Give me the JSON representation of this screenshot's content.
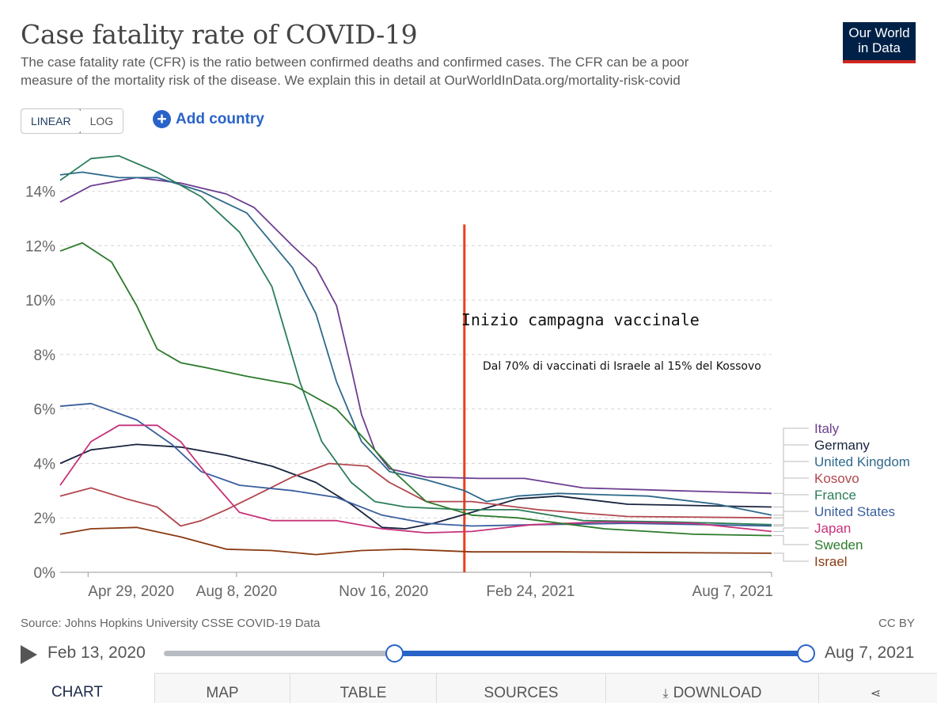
{
  "header": {
    "title": "Case fatality rate of COVID-19",
    "subtitle_line1": "The case fatality rate (CFR) is the ratio between confirmed deaths and confirmed cases. The CFR can be a poor",
    "subtitle_line2": "measure of the mortality risk of the disease. We explain this in detail at OurWorldInData.org/mortality-risk-covid",
    "logo_line1": "Our World",
    "logo_line2": "in Data"
  },
  "controls": {
    "scale_linear": "LINEAR",
    "scale_log": "LOG",
    "add_country": "Add country",
    "add_icon": "plus-circle-icon"
  },
  "footer": {
    "source": "Source: Johns Hopkins University CSSE COVID-19 Data",
    "license": "CC BY"
  },
  "timeline": {
    "start_label": "Feb 13, 2020",
    "end_label": "Aug 7, 2021",
    "play_icon": "play-icon",
    "range_start_date": "2020-08-25",
    "range_end_date": "2021-08-07"
  },
  "tabs": [
    {
      "label": "CHART",
      "active": true
    },
    {
      "label": "MAP"
    },
    {
      "label": "TABLE"
    },
    {
      "label": "SOURCES"
    },
    {
      "label": "DOWNLOAD",
      "icon": "download-icon"
    },
    {
      "label": "",
      "icon": "share-icon"
    }
  ],
  "chart_data": {
    "type": "line",
    "y_scale": "linear",
    "ylim": [
      0,
      15.5
    ],
    "xlim": [
      "2020-04-10",
      "2021-08-07"
    ],
    "yticks": [
      0,
      2,
      4,
      6,
      8,
      10,
      12,
      14
    ],
    "ytick_labels": [
      "0%",
      "2%",
      "4%",
      "6%",
      "8%",
      "10%",
      "12%",
      "14%"
    ],
    "xticks": [
      "2020-04-29",
      "2020-08-08",
      "2020-11-16",
      "2021-02-24",
      "2021-08-07"
    ],
    "xtick_labels": [
      "Apr 29, 2020",
      "Aug 8, 2020",
      "Nov 16, 2020",
      "Feb 24, 2021",
      "Aug 7, 2021"
    ],
    "grid": "horizontal dashed",
    "legend": "right, end-of-line labels",
    "annotations": [
      {
        "type": "vline",
        "x": "2021-01-10",
        "label": "Inizio campagna vaccinale",
        "color": "#e8401c"
      },
      {
        "type": "text",
        "x": "2021-01-25",
        "y": 7.7,
        "label": "Dal 70% di vaccinati di Israele al 15% del Kossovo"
      }
    ],
    "series": [
      {
        "name": "Italy",
        "color": "#6d3e91",
        "points": [
          [
            "2020-04-10",
            13.6
          ],
          [
            "2020-05-01",
            14.2
          ],
          [
            "2020-06-01",
            14.5
          ],
          [
            "2020-07-01",
            14.3
          ],
          [
            "2020-08-01",
            13.9
          ],
          [
            "2020-08-20",
            13.4
          ],
          [
            "2020-09-15",
            12.0
          ],
          [
            "2020-10-01",
            11.2
          ],
          [
            "2020-10-15",
            9.8
          ],
          [
            "2020-10-25",
            7.5
          ],
          [
            "2020-11-01",
            5.8
          ],
          [
            "2020-11-10",
            4.5
          ],
          [
            "2020-11-20",
            3.8
          ],
          [
            "2020-12-15",
            3.5
          ],
          [
            "2021-01-20",
            3.45
          ],
          [
            "2021-02-20",
            3.45
          ],
          [
            "2021-04-01",
            3.1
          ],
          [
            "2021-06-01",
            3.0
          ],
          [
            "2021-08-07",
            2.9
          ]
        ]
      },
      {
        "name": "Germany",
        "color": "#18243e",
        "points": [
          [
            "2020-04-10",
            4.0
          ],
          [
            "2020-05-01",
            4.5
          ],
          [
            "2020-06-01",
            4.7
          ],
          [
            "2020-07-01",
            4.6
          ],
          [
            "2020-08-01",
            4.3
          ],
          [
            "2020-09-01",
            3.9
          ],
          [
            "2020-10-01",
            3.3
          ],
          [
            "2020-10-25",
            2.5
          ],
          [
            "2020-11-15",
            1.65
          ],
          [
            "2020-12-01",
            1.6
          ],
          [
            "2020-12-20",
            1.8
          ],
          [
            "2021-01-15",
            2.2
          ],
          [
            "2021-02-15",
            2.7
          ],
          [
            "2021-03-15",
            2.8
          ],
          [
            "2021-05-01",
            2.5
          ],
          [
            "2021-08-07",
            2.4
          ]
        ]
      },
      {
        "name": "United Kingdom",
        "color": "#2e6a8b",
        "points": [
          [
            "2020-04-10",
            14.6
          ],
          [
            "2020-04-25",
            14.7
          ],
          [
            "2020-05-20",
            14.5
          ],
          [
            "2020-06-15",
            14.5
          ],
          [
            "2020-07-15",
            14.0
          ],
          [
            "2020-08-15",
            13.2
          ],
          [
            "2020-09-15",
            11.2
          ],
          [
            "2020-10-01",
            9.5
          ],
          [
            "2020-10-15",
            7.0
          ],
          [
            "2020-11-01",
            4.8
          ],
          [
            "2020-11-20",
            3.7
          ],
          [
            "2020-12-15",
            3.4
          ],
          [
            "2021-01-10",
            3.0
          ],
          [
            "2021-01-25",
            2.6
          ],
          [
            "2021-02-15",
            2.8
          ],
          [
            "2021-03-15",
            2.9
          ],
          [
            "2021-05-15",
            2.8
          ],
          [
            "2021-07-01",
            2.5
          ],
          [
            "2021-08-07",
            2.1
          ]
        ]
      },
      {
        "name": "Kosovo",
        "color": "#b1474e",
        "points": [
          [
            "2020-04-10",
            2.8
          ],
          [
            "2020-05-01",
            3.1
          ],
          [
            "2020-05-25",
            2.7
          ],
          [
            "2020-06-15",
            2.4
          ],
          [
            "2020-07-01",
            1.7
          ],
          [
            "2020-07-15",
            1.9
          ],
          [
            "2020-08-01",
            2.3
          ],
          [
            "2020-08-20",
            2.8
          ],
          [
            "2020-09-15",
            3.5
          ],
          [
            "2020-10-10",
            4.0
          ],
          [
            "2020-11-05",
            3.9
          ],
          [
            "2020-11-20",
            3.3
          ],
          [
            "2020-12-15",
            2.6
          ],
          [
            "2021-01-15",
            2.6
          ],
          [
            "2021-03-01",
            2.3
          ],
          [
            "2021-05-01",
            2.05
          ],
          [
            "2021-08-07",
            2.0
          ]
        ]
      },
      {
        "name": "France",
        "color": "#2a7d58",
        "points": [
          [
            "2020-04-10",
            14.4
          ],
          [
            "2020-05-01",
            15.2
          ],
          [
            "2020-05-20",
            15.3
          ],
          [
            "2020-06-15",
            14.7
          ],
          [
            "2020-07-15",
            13.8
          ],
          [
            "2020-08-10",
            12.5
          ],
          [
            "2020-09-01",
            10.5
          ],
          [
            "2020-09-20",
            7.0
          ],
          [
            "2020-10-05",
            4.8
          ],
          [
            "2020-10-25",
            3.3
          ],
          [
            "2020-11-10",
            2.6
          ],
          [
            "2020-12-01",
            2.4
          ],
          [
            "2021-01-10",
            2.3
          ],
          [
            "2021-02-15",
            2.3
          ],
          [
            "2021-04-01",
            1.9
          ],
          [
            "2021-06-01",
            1.85
          ],
          [
            "2021-08-07",
            1.75
          ]
        ]
      },
      {
        "name": "United States",
        "color": "#3a5f9e",
        "points": [
          [
            "2020-04-10",
            6.1
          ],
          [
            "2020-05-01",
            6.2
          ],
          [
            "2020-06-01",
            5.6
          ],
          [
            "2020-06-25",
            4.7
          ],
          [
            "2020-07-15",
            3.7
          ],
          [
            "2020-08-10",
            3.2
          ],
          [
            "2020-09-15",
            3.0
          ],
          [
            "2020-10-15",
            2.75
          ],
          [
            "2020-11-15",
            2.1
          ],
          [
            "2020-12-15",
            1.8
          ],
          [
            "2021-01-15",
            1.7
          ],
          [
            "2021-03-01",
            1.75
          ],
          [
            "2021-05-01",
            1.8
          ],
          [
            "2021-08-07",
            1.7
          ]
        ]
      },
      {
        "name": "Japan",
        "color": "#c6327a",
        "points": [
          [
            "2020-04-10",
            3.2
          ],
          [
            "2020-05-01",
            4.8
          ],
          [
            "2020-05-20",
            5.4
          ],
          [
            "2020-06-15",
            5.4
          ],
          [
            "2020-07-01",
            4.8
          ],
          [
            "2020-07-20",
            3.5
          ],
          [
            "2020-08-10",
            2.2
          ],
          [
            "2020-09-01",
            1.9
          ],
          [
            "2020-10-15",
            1.9
          ],
          [
            "2020-11-15",
            1.6
          ],
          [
            "2020-12-15",
            1.45
          ],
          [
            "2021-01-15",
            1.5
          ],
          [
            "2021-02-25",
            1.75
          ],
          [
            "2021-04-15",
            1.85
          ],
          [
            "2021-06-15",
            1.8
          ],
          [
            "2021-08-07",
            1.5
          ]
        ]
      },
      {
        "name": "Sweden",
        "color": "#2c7a2c",
        "points": [
          [
            "2020-04-10",
            11.8
          ],
          [
            "2020-04-25",
            12.1
          ],
          [
            "2020-05-15",
            11.4
          ],
          [
            "2020-06-01",
            9.8
          ],
          [
            "2020-06-15",
            8.2
          ],
          [
            "2020-07-01",
            7.7
          ],
          [
            "2020-07-20",
            7.5
          ],
          [
            "2020-08-15",
            7.2
          ],
          [
            "2020-09-15",
            6.9
          ],
          [
            "2020-10-15",
            6.0
          ],
          [
            "2020-11-15",
            4.2
          ],
          [
            "2020-11-25",
            3.6
          ],
          [
            "2020-12-15",
            2.6
          ],
          [
            "2021-01-15",
            2.1
          ],
          [
            "2021-02-15",
            2.0
          ],
          [
            "2021-04-15",
            1.6
          ],
          [
            "2021-06-15",
            1.4
          ],
          [
            "2021-08-07",
            1.35
          ]
        ]
      },
      {
        "name": "Israel",
        "color": "#8a3a12",
        "points": [
          [
            "2020-04-10",
            1.4
          ],
          [
            "2020-05-01",
            1.6
          ],
          [
            "2020-06-01",
            1.65
          ],
          [
            "2020-07-01",
            1.3
          ],
          [
            "2020-08-01",
            0.85
          ],
          [
            "2020-09-01",
            0.8
          ],
          [
            "2020-10-01",
            0.65
          ],
          [
            "2020-11-01",
            0.8
          ],
          [
            "2020-12-01",
            0.85
          ],
          [
            "2021-01-15",
            0.75
          ],
          [
            "2021-03-15",
            0.75
          ],
          [
            "2021-08-07",
            0.7
          ]
        ]
      }
    ]
  }
}
